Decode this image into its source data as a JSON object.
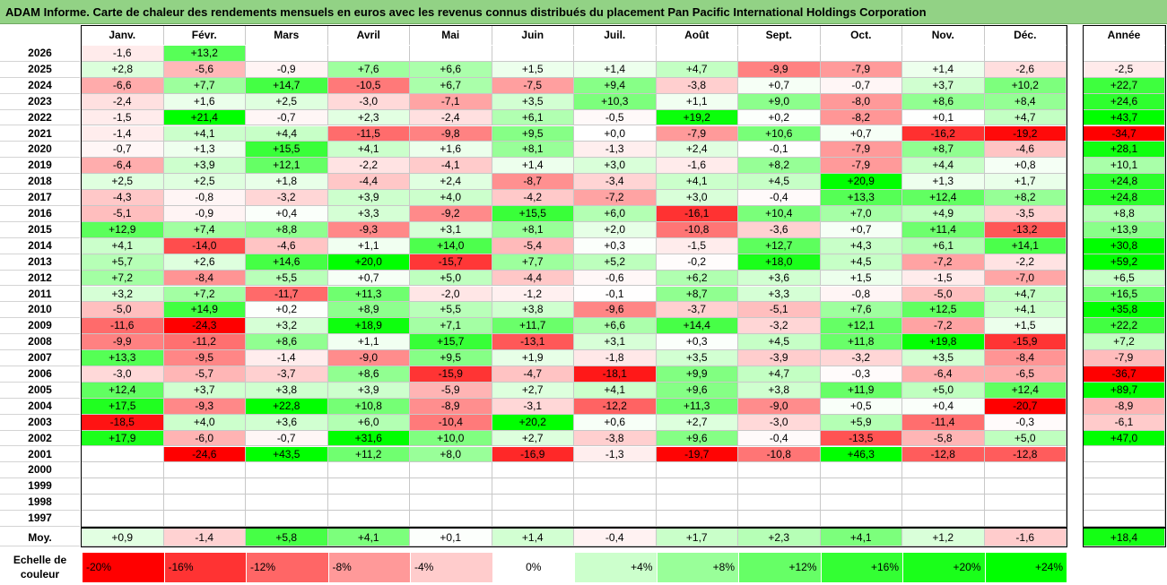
{
  "chart_data": {
    "type": "heatmap",
    "title": "ADAM Informe. Carte de chaleur des rendements mensuels en euros avec les revenus connus distribués du placement Pan Pacific International Holdings Corporation",
    "columns": [
      "Janv.",
      "Févr.",
      "Mars",
      "Avril",
      "Mai",
      "Juin",
      "Juil.",
      "Août",
      "Sept.",
      "Oct.",
      "Nov.",
      "Déc."
    ],
    "annual_header": "Année",
    "rows": [
      {
        "year": "2026",
        "values": [
          "-1,6",
          "+13,2",
          "",
          "",
          "",
          "",
          "",
          "",
          "",
          "",
          "",
          ""
        ],
        "annual": ""
      },
      {
        "year": "2025",
        "values": [
          "+2,8",
          "-5,6",
          "-0,9",
          "+7,6",
          "+6,6",
          "+1,5",
          "+1,4",
          "+4,7",
          "-9,9",
          "-7,9",
          "+1,4",
          "-2,6"
        ],
        "annual": "-2,5"
      },
      {
        "year": "2024",
        "values": [
          "-6,6",
          "+7,7",
          "+14,7",
          "-10,5",
          "+6,7",
          "-7,5",
          "+9,4",
          "-3,8",
          "+0,7",
          "-0,7",
          "+3,7",
          "+10,2"
        ],
        "annual": "+22,7"
      },
      {
        "year": "2023",
        "values": [
          "-2,4",
          "+1,6",
          "+2,5",
          "-3,0",
          "-7,1",
          "+3,5",
          "+10,3",
          "+1,1",
          "+9,0",
          "-8,0",
          "+8,6",
          "+8,4"
        ],
        "annual": "+24,6"
      },
      {
        "year": "2022",
        "values": [
          "-1,5",
          "+21,4",
          "-0,7",
          "+2,3",
          "-2,4",
          "+6,1",
          "-0,5",
          "+19,2",
          "+0,2",
          "-8,2",
          "+0,1",
          "+4,7"
        ],
        "annual": "+43,7"
      },
      {
        "year": "2021",
        "values": [
          "-1,4",
          "+4,1",
          "+4,4",
          "-11,5",
          "-9,8",
          "+9,5",
          "+0,0",
          "-7,9",
          "+10,6",
          "+0,7",
          "-16,2",
          "-19,2"
        ],
        "annual": "-34,7"
      },
      {
        "year": "2020",
        "values": [
          "-0,7",
          "+1,3",
          "+15,5",
          "+4,1",
          "+1,6",
          "+8,1",
          "-1,3",
          "+2,4",
          "-0,1",
          "-7,9",
          "+8,7",
          "-4,6"
        ],
        "annual": "+28,1"
      },
      {
        "year": "2019",
        "values": [
          "-6,4",
          "+3,9",
          "+12,1",
          "-2,2",
          "-4,1",
          "+1,4",
          "+3,0",
          "-1,6",
          "+8,2",
          "-7,9",
          "+4,4",
          "+0,8"
        ],
        "annual": "+10,1"
      },
      {
        "year": "2018",
        "values": [
          "+2,5",
          "+2,5",
          "+1,8",
          "-4,4",
          "+2,4",
          "-8,7",
          "-3,4",
          "+4,1",
          "+4,5",
          "+20,9",
          "+1,3",
          "+1,7"
        ],
        "annual": "+24,8"
      },
      {
        "year": "2017",
        "values": [
          "-4,3",
          "-0,8",
          "-3,2",
          "+3,9",
          "+4,0",
          "-4,2",
          "-7,2",
          "+3,0",
          "-0,4",
          "+13,3",
          "+12,4",
          "+8,2"
        ],
        "annual": "+24,8"
      },
      {
        "year": "2016",
        "values": [
          "-5,1",
          "-0,9",
          "+0,4",
          "+3,3",
          "-9,2",
          "+15,5",
          "+6,0",
          "-16,1",
          "+10,4",
          "+7,0",
          "+4,9",
          "-3,5"
        ],
        "annual": "+8,8"
      },
      {
        "year": "2015",
        "values": [
          "+12,9",
          "+7,4",
          "+8,8",
          "-9,3",
          "+3,1",
          "+8,1",
          "+2,0",
          "-10,8",
          "-3,6",
          "+0,7",
          "+11,4",
          "-13,2"
        ],
        "annual": "+13,9"
      },
      {
        "year": "2014",
        "values": [
          "+4,1",
          "-14,0",
          "-4,6",
          "+1,1",
          "+14,0",
          "-5,4",
          "+0,3",
          "-1,5",
          "+12,7",
          "+4,3",
          "+6,1",
          "+14,1"
        ],
        "annual": "+30,8"
      },
      {
        "year": "2013",
        "values": [
          "+5,7",
          "+2,6",
          "+14,6",
          "+20,0",
          "-15,7",
          "+7,7",
          "+5,2",
          "-0,2",
          "+18,0",
          "+4,5",
          "-7,2",
          "-2,2"
        ],
        "annual": "+59,2"
      },
      {
        "year": "2012",
        "values": [
          "+7,2",
          "-8,4",
          "+5,5",
          "+0,7",
          "+5,0",
          "-4,4",
          "-0,6",
          "+6,2",
          "+3,6",
          "+1,5",
          "-1,5",
          "-7,0"
        ],
        "annual": "+6,5"
      },
      {
        "year": "2011",
        "values": [
          "+3,2",
          "+7,2",
          "-11,7",
          "+11,3",
          "-2,0",
          "-1,2",
          "-0,1",
          "+8,7",
          "+3,3",
          "-0,8",
          "-5,0",
          "+4,7"
        ],
        "annual": "+16,5"
      },
      {
        "year": "2010",
        "values": [
          "-5,0",
          "+14,9",
          "+0,2",
          "+8,9",
          "+5,5",
          "+3,8",
          "-9,6",
          "-3,7",
          "-5,1",
          "+7,6",
          "+12,5",
          "+4,1"
        ],
        "annual": "+35,8"
      },
      {
        "year": "2009",
        "values": [
          "-11,6",
          "-24,3",
          "+3,2",
          "+18,9",
          "+7,1",
          "+11,7",
          "+6,6",
          "+14,4",
          "-3,2",
          "+12,1",
          "-7,2",
          "+1,5"
        ],
        "annual": "+22,2"
      },
      {
        "year": "2008",
        "values": [
          "-9,9",
          "-11,2",
          "+8,6",
          "+1,1",
          "+15,7",
          "-13,1",
          "+3,1",
          "+0,3",
          "+4,5",
          "+11,8",
          "+19,8",
          "-15,9"
        ],
        "annual": "+7,2"
      },
      {
        "year": "2007",
        "values": [
          "+13,3",
          "-9,5",
          "-1,4",
          "-9,0",
          "+9,5",
          "+1,9",
          "-1,8",
          "+3,5",
          "-3,9",
          "-3,2",
          "+3,5",
          "-8,4"
        ],
        "annual": "-7,9"
      },
      {
        "year": "2006",
        "values": [
          "-3,0",
          "-5,7",
          "-3,7",
          "+8,6",
          "-15,9",
          "-4,7",
          "-18,1",
          "+9,9",
          "+4,7",
          "-0,3",
          "-6,4",
          "-6,5"
        ],
        "annual": "-36,7"
      },
      {
        "year": "2005",
        "values": [
          "+12,4",
          "+3,7",
          "+3,8",
          "+3,9",
          "-5,9",
          "+2,7",
          "+4,1",
          "+9,6",
          "+3,8",
          "+11,9",
          "+5,0",
          "+12,4"
        ],
        "annual": "+89,7"
      },
      {
        "year": "2004",
        "values": [
          "+17,5",
          "-9,3",
          "+22,8",
          "+10,8",
          "-8,9",
          "-3,1",
          "-12,2",
          "+11,3",
          "-9,0",
          "+0,5",
          "+0,4",
          "-20,7"
        ],
        "annual": "-8,9"
      },
      {
        "year": "2003",
        "values": [
          "-18,5",
          "+4,0",
          "+3,6",
          "+6,0",
          "-10,4",
          "+20,2",
          "+0,6",
          "+2,7",
          "-3,0",
          "+5,9",
          "-11,4",
          "-0,3"
        ],
        "annual": "-6,1"
      },
      {
        "year": "2002",
        "values": [
          "+17,9",
          "-6,0",
          "-0,7",
          "+31,6",
          "+10,0",
          "+2,7",
          "-3,8",
          "+9,6",
          "-0,4",
          "-13,5",
          "-5,8",
          "+5,0"
        ],
        "annual": "+47,0"
      },
      {
        "year": "2001",
        "values": [
          "",
          "-24,6",
          "+43,5",
          "+11,2",
          "+8,0",
          "-16,9",
          "-1,3",
          "-19,7",
          "-10,8",
          "+46,3",
          "-12,8",
          "-12,8"
        ],
        "annual": ""
      },
      {
        "year": "2000",
        "values": [
          "",
          "",
          "",
          "",
          "",
          "",
          "",
          "",
          "",
          "",
          "",
          ""
        ],
        "annual": ""
      },
      {
        "year": "1999",
        "values": [
          "",
          "",
          "",
          "",
          "",
          "",
          "",
          "",
          "",
          "",
          "",
          ""
        ],
        "annual": ""
      },
      {
        "year": "1998",
        "values": [
          "",
          "",
          "",
          "",
          "",
          "",
          "",
          "",
          "",
          "",
          "",
          ""
        ],
        "annual": ""
      },
      {
        "year": "1997",
        "values": [
          "",
          "",
          "",
          "",
          "",
          "",
          "",
          "",
          "",
          "",
          "",
          ""
        ],
        "annual": ""
      }
    ],
    "average": {
      "label": "Moy.",
      "values": [
        "+0,9",
        "-1,4",
        "+5,8",
        "+4,1",
        "+0,1",
        "+1,4",
        "-0,4",
        "+1,7",
        "+2,3",
        "+4,1",
        "+1,2",
        "-1,6"
      ],
      "annual": "+18,4"
    },
    "color_scale": {
      "label_line1": "Echelle de",
      "label_line2": "couleur",
      "stops": [
        {
          "label": "-20%",
          "value": -20,
          "color": "#ff0000"
        },
        {
          "label": "-16%",
          "value": -16,
          "color": "#ff3333"
        },
        {
          "label": "-12%",
          "value": -12,
          "color": "#ff6666"
        },
        {
          "label": "-8%",
          "value": -8,
          "color": "#ff9999"
        },
        {
          "label": "-4%",
          "value": -4,
          "color": "#ffcccc"
        },
        {
          "label": "0%",
          "value": 0,
          "color": "#ffffff"
        },
        {
          "label": "+4%",
          "value": 4,
          "color": "#ccffcc"
        },
        {
          "label": "+8%",
          "value": 8,
          "color": "#99ff99"
        },
        {
          "label": "+12%",
          "value": 12,
          "color": "#66ff66"
        },
        {
          "label": "+16%",
          "value": 16,
          "color": "#33ff33"
        },
        {
          "label": "+20%",
          "value": 20,
          "color": "#1aff1a"
        },
        {
          "label": "+24%",
          "value": 24,
          "color": "#00ff00"
        }
      ]
    }
  }
}
